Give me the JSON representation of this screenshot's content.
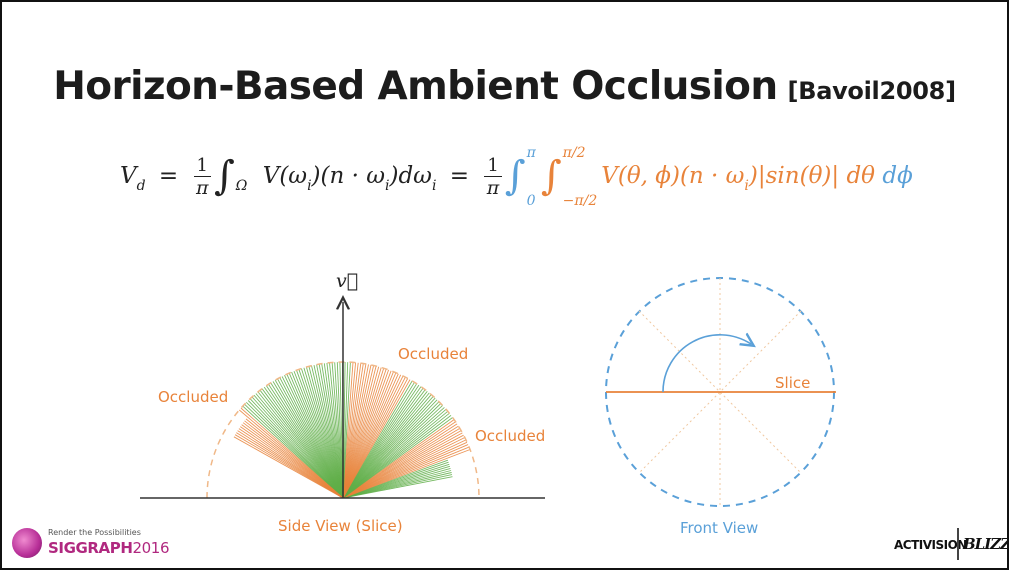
{
  "slide": {
    "title": "Horizon-Based Ambient Occlusion",
    "citation": "[Bavoil2008]"
  },
  "equation": {
    "lhs": "V",
    "lhs_sub": "d",
    "eq1": "=",
    "frac_num": "1",
    "frac_den": "π",
    "int1_sym": "∫",
    "int1_sub": "Ω",
    "integrand1": "V(ω",
    "integrand1_sub": "i",
    "integrand1b": ")(n · ω",
    "integrand1b_sub": "i",
    "integrand1c": ")dω",
    "integrand1c_sub": "i",
    "eq2": "=",
    "frac2_num": "1",
    "frac2_den": "π",
    "outer_int_sym": "∫",
    "outer_int_hi": "π",
    "outer_int_lo": "0",
    "inner_int_sym": "∫",
    "inner_int_hi": "π/2",
    "inner_int_lo": "−π/2",
    "integrand2": "V(θ, ϕ)(n · ω",
    "integrand2_sub": "i",
    "integrand2b": ")|sin(θ)| dθ",
    "outer_diff": "dϕ"
  },
  "side_view": {
    "vector_label": "v⃗",
    "occluded_left": "Occluded",
    "occluded_top": "Occluded",
    "occluded_right": "Occluded",
    "caption": "Side View (Slice)"
  },
  "front_view": {
    "slice_label": "Slice",
    "caption": "Front View"
  },
  "colors": {
    "orange": "#e8833a",
    "green": "#5fae48",
    "blue": "#5aa0d8",
    "dark": "#1c1c1c"
  },
  "logos": {
    "siggraph_tagline": "Render the Possibilities",
    "siggraph_name": "SIGGRAPH",
    "siggraph_year": "2016",
    "activision": "ACTIVISION",
    "blizzard": "BLIZZARD"
  }
}
